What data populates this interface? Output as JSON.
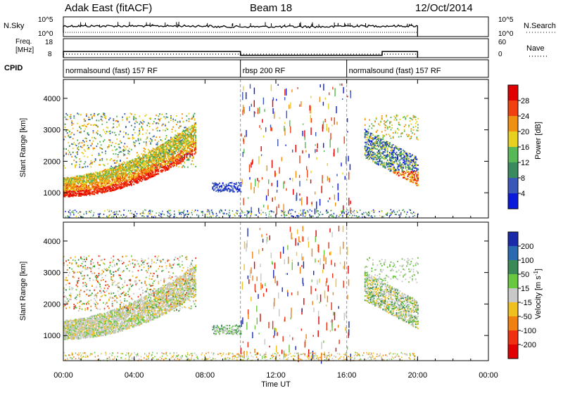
{
  "header": {
    "station": "Adak East (fitACF)",
    "beam": "Beam 18",
    "date": "12/Oct/2014"
  },
  "chart_data": [
    {
      "type": "line",
      "panel": "noise",
      "left_label": "N.Sky",
      "right_label": "N.Search",
      "yticks_left": [
        "10^5",
        "10^0"
      ],
      "yticks_right": [
        "10^5",
        "10^0"
      ],
      "x_range_hours": [
        0,
        24
      ],
      "active_window_hours": [
        0,
        20
      ]
    },
    {
      "type": "line",
      "panel": "frequency",
      "left_label_lines": [
        "Freq.",
        "[MHz]"
      ],
      "right_label": "Nave",
      "yticks_left": [
        "18",
        "8"
      ],
      "yticks_right": [
        "60",
        "0"
      ],
      "segments": [
        {
          "from": 0,
          "to": 10,
          "freq_mhz": 12
        },
        {
          "from": 10,
          "to": 18,
          "freq_mhz": 10
        },
        {
          "from": 18,
          "to": 20,
          "freq_mhz": 12
        }
      ]
    },
    {
      "type": "table",
      "panel": "cpid",
      "left_label": "CPID",
      "segments": [
        {
          "from": 0,
          "to": 10,
          "label": "normalsound (fast) 157 RF"
        },
        {
          "from": 10,
          "to": 16,
          "label": "rbsp 200 RF"
        },
        {
          "from": 16,
          "to": 20,
          "label": "normalsound (fast) 157 RF"
        }
      ]
    },
    {
      "type": "heatmap",
      "panel": "power",
      "ylabel": "Slant Range [km]",
      "yticks": [
        "1000",
        "2000",
        "3000",
        "4000"
      ],
      "ylim": [
        200,
        4600
      ],
      "colorbar_label": "Power [dB]",
      "colorbar_ticks": [
        "4",
        "8",
        "12",
        "16",
        "20",
        "24",
        "28"
      ],
      "colorbar_colors": [
        "#0a1adb",
        "#3a58b8",
        "#3a8a60",
        "#58b858",
        "#e8d020",
        "#f09010",
        "#f04010",
        "#e00000"
      ]
    },
    {
      "type": "heatmap",
      "panel": "velocity",
      "ylabel": "Slant Range [km]",
      "yticks": [
        "1000",
        "2000",
        "3000",
        "4000"
      ],
      "ylim": [
        200,
        4600
      ],
      "colorbar_label": "Velocity [m s^-1]",
      "colorbar_ticks": [
        "200",
        "100",
        "50",
        "15",
        "-15",
        "-50",
        "-100",
        "-200"
      ],
      "colorbar_colors": [
        "#1a2aa8",
        "#2a6ab0",
        "#3a8a58",
        "#68c840",
        "#c8c8c8",
        "#f0c020",
        "#f08010",
        "#f03010",
        "#e00000"
      ]
    }
  ],
  "xaxis": {
    "label": "Time UT",
    "ticks": [
      "00:00",
      "04:00",
      "08:00",
      "12:00",
      "16:00",
      "20:00",
      "00:00"
    ]
  }
}
